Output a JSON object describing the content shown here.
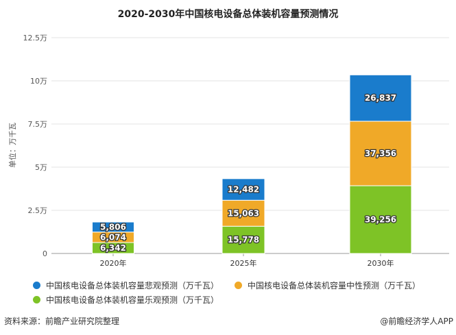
{
  "chart_data": {
    "type": "bar",
    "stacked": true,
    "title": "2020-2030年中国核电设备总体装机容量预测情况",
    "ylabel": "单位：万千瓦",
    "categories": [
      "2020年",
      "2025年",
      "2030年"
    ],
    "yticks": [
      "0",
      "2.5万",
      "5万",
      "7.5万",
      "10万",
      "12.5万"
    ],
    "ylim": [
      0,
      125000
    ],
    "grid": true,
    "legend_position": "bottom",
    "series": [
      {
        "name": "中国核电设备总体装机容量乐观预测（万千瓦）",
        "color": "#7ec326",
        "values": [
          6342,
          15778,
          39256
        ],
        "labels": [
          "6,342",
          "15,778",
          "39,256"
        ]
      },
      {
        "name": "中国核电设备总体装机容量中性预测（万千瓦）",
        "color": "#f0a928",
        "values": [
          6074,
          15063,
          37356
        ],
        "labels": [
          "6,074",
          "15,063",
          "37,356"
        ]
      },
      {
        "name": "中国核电设备总体装机容量悲观预测（万千瓦）",
        "color": "#1a7ccc",
        "values": [
          5806,
          12482,
          26837
        ],
        "labels": [
          "5,806",
          "12,482",
          "26,837"
        ]
      }
    ]
  },
  "footer": {
    "source": "资料来源：前瞻产业研究院整理",
    "credit": "@前瞻经济学人APP"
  }
}
